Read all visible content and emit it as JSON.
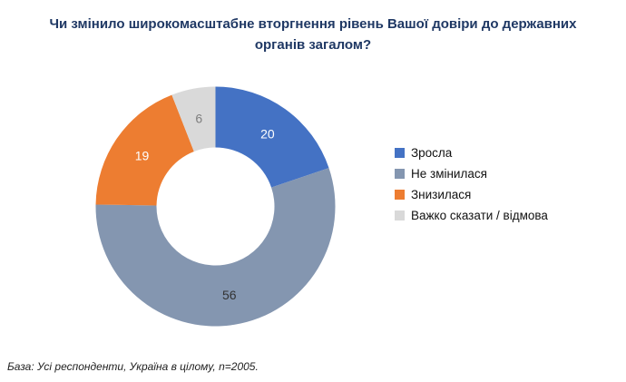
{
  "title": "Чи змінило широкомасштабне вторгнення рівень Вашої довіри до державних органів загалом?",
  "footer": "База: Усі респонденти, Україна в цілому, n=2005.",
  "chart_data": {
    "type": "pie",
    "donut": true,
    "title": "Чи змінило широкомасштабне вторгнення рівень Вашої довіри до державних органів загалом?",
    "categories": [
      "Зросла",
      "Не змінилася",
      "Знизилася",
      "Важко сказати / відмова"
    ],
    "values": [
      20,
      56,
      19,
      6
    ],
    "colors": [
      "#4472C4",
      "#8496B0",
      "#ED7D31",
      "#D9D9D9"
    ],
    "label_colors": [
      "#FFFFFF",
      "#333333",
      "#FFFFFF",
      "#7F7F7F"
    ],
    "start_angle_deg": 0,
    "direction": "clockwise",
    "legend_position": "right"
  },
  "legend": {
    "items": [
      {
        "label": "Зросла",
        "color": "#4472C4"
      },
      {
        "label": "Не змінилася",
        "color": "#8496B0"
      },
      {
        "label": "Знизилася",
        "color": "#ED7D31"
      },
      {
        "label": "Важко сказати / відмова",
        "color": "#D9D9D9"
      }
    ]
  }
}
